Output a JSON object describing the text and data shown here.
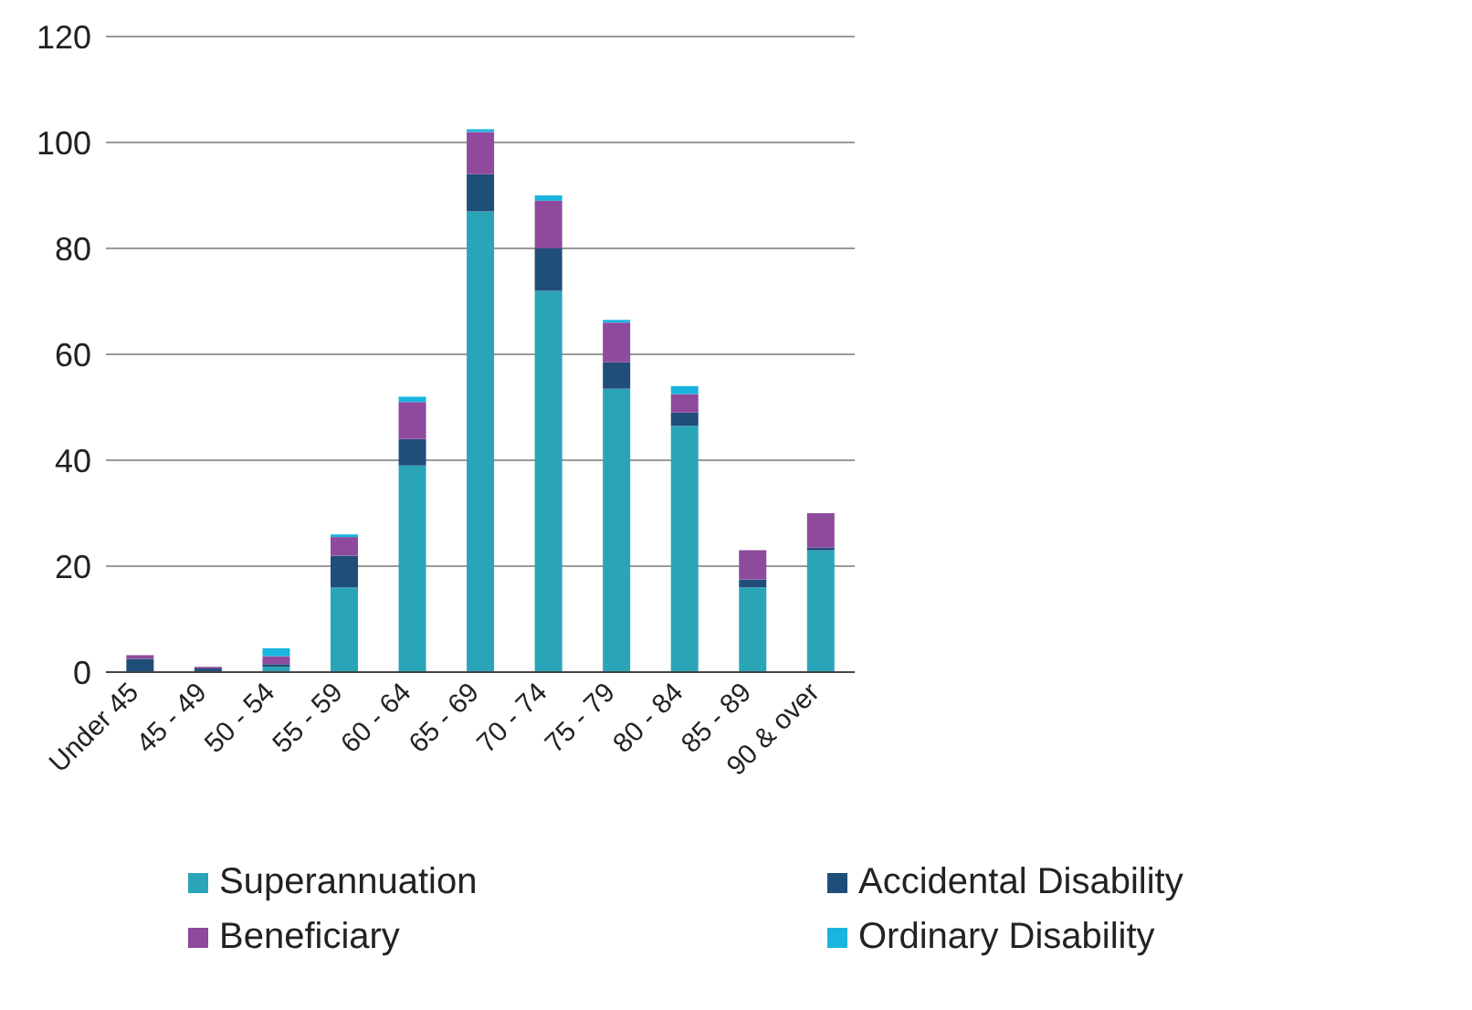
{
  "chart_data": {
    "type": "bar",
    "stacked": true,
    "categories": [
      "Under 45",
      "45 - 49",
      "50 - 54",
      "55 - 59",
      "60 - 64",
      "65 - 69",
      "70 - 74",
      "75 - 79",
      "80 - 84",
      "85 - 89",
      "90 & over"
    ],
    "series": [
      {
        "name": "Superannuation",
        "color": "#2aa5b8",
        "values": [
          0,
          0,
          1,
          16,
          39,
          87,
          72,
          53.5,
          46.5,
          16,
          23
        ]
      },
      {
        "name": "Accidental Disability",
        "color": "#1f4e79",
        "values": [
          2.5,
          0.7,
          0.5,
          6,
          5,
          7,
          8,
          5,
          2.5,
          1.5,
          0.5
        ]
      },
      {
        "name": "Beneficiary",
        "color": "#8e4a9c",
        "values": [
          0.7,
          0.3,
          1.5,
          3.5,
          7,
          8,
          9,
          7.5,
          3.5,
          5.5,
          6.5
        ]
      },
      {
        "name": "Ordinary Disability",
        "color": "#19b5e0",
        "values": [
          0,
          0,
          1.5,
          0.5,
          1,
          0.5,
          1,
          0.5,
          1.5,
          0,
          0
        ]
      }
    ],
    "ylim": [
      0,
      120
    ],
    "yticks": [
      0,
      20,
      40,
      60,
      80,
      100,
      120
    ],
    "grid": "y",
    "legend": "bottom"
  }
}
